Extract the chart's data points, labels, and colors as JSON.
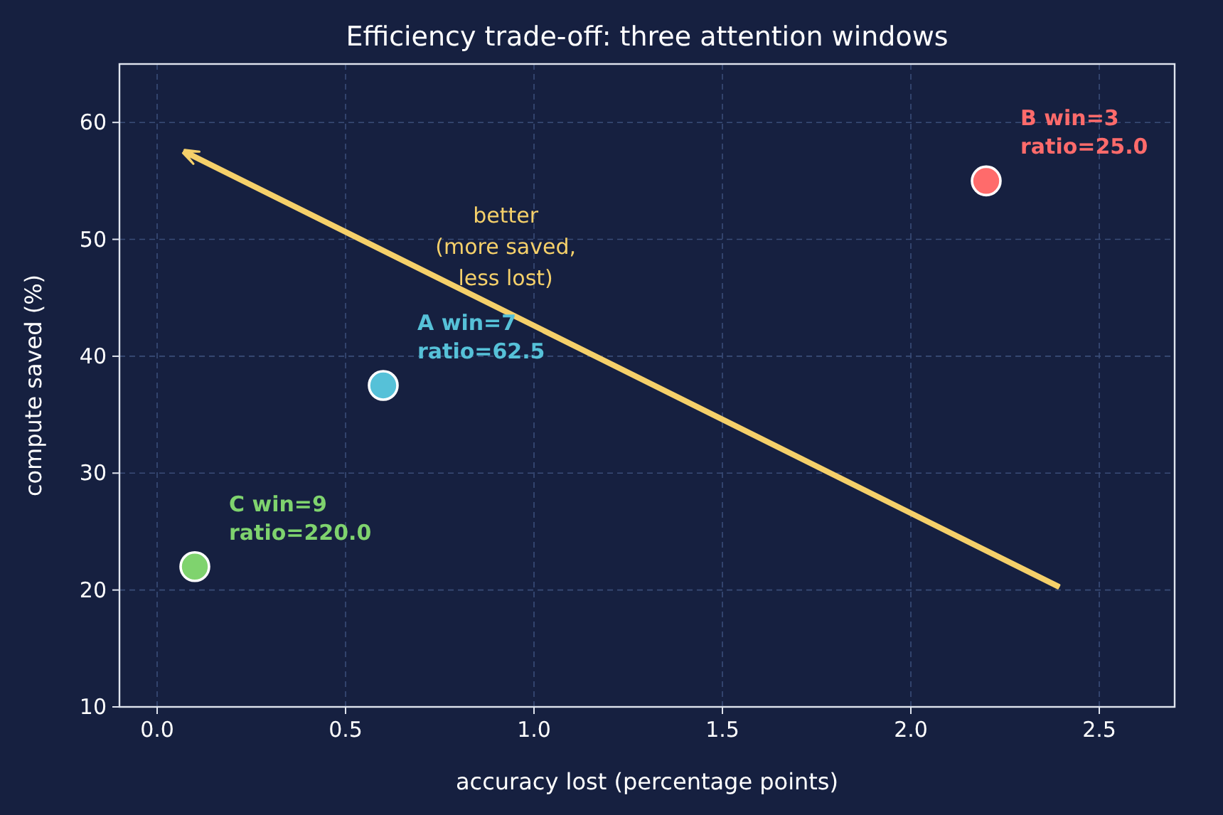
{
  "chart_data": {
    "type": "scatter",
    "title": "Efficiency trade-off: three attention windows",
    "xlabel": "accuracy lost  (percentage points)",
    "ylabel": "compute saved  (%)",
    "series": [
      {
        "name": "C win=9\nratio=220.0",
        "color": "#7fd36e",
        "x": [
          0.1
        ],
        "values": [
          22
        ]
      },
      {
        "name": "A win=7\nratio=62.5",
        "color": "#56c1d8",
        "x": [
          0.6
        ],
        "values": [
          37.5
        ]
      },
      {
        "name": "B win=3\nratio=25.0",
        "color": "#ff6b6b",
        "x": [
          2.2
        ],
        "values": [
          55
        ]
      }
    ],
    "annotations": [
      "better\n(more saved,\nless lost)"
    ],
    "xlim": [
      -0.1,
      2.7
    ],
    "xticks": [
      {
        "value": 0,
        "label": "0.0"
      },
      {
        "value": 0.5,
        "label": "0.5"
      },
      {
        "value": 1,
        "label": "1.0"
      },
      {
        "value": 1.5,
        "label": "1.5"
      },
      {
        "value": 2,
        "label": "2.0"
      },
      {
        "value": 2.5,
        "label": "2.5"
      }
    ],
    "ylim": [
      10,
      65
    ],
    "yticks": [
      10,
      20,
      30,
      40,
      50,
      60
    ],
    "grid": true,
    "marker": "circle"
  }
}
